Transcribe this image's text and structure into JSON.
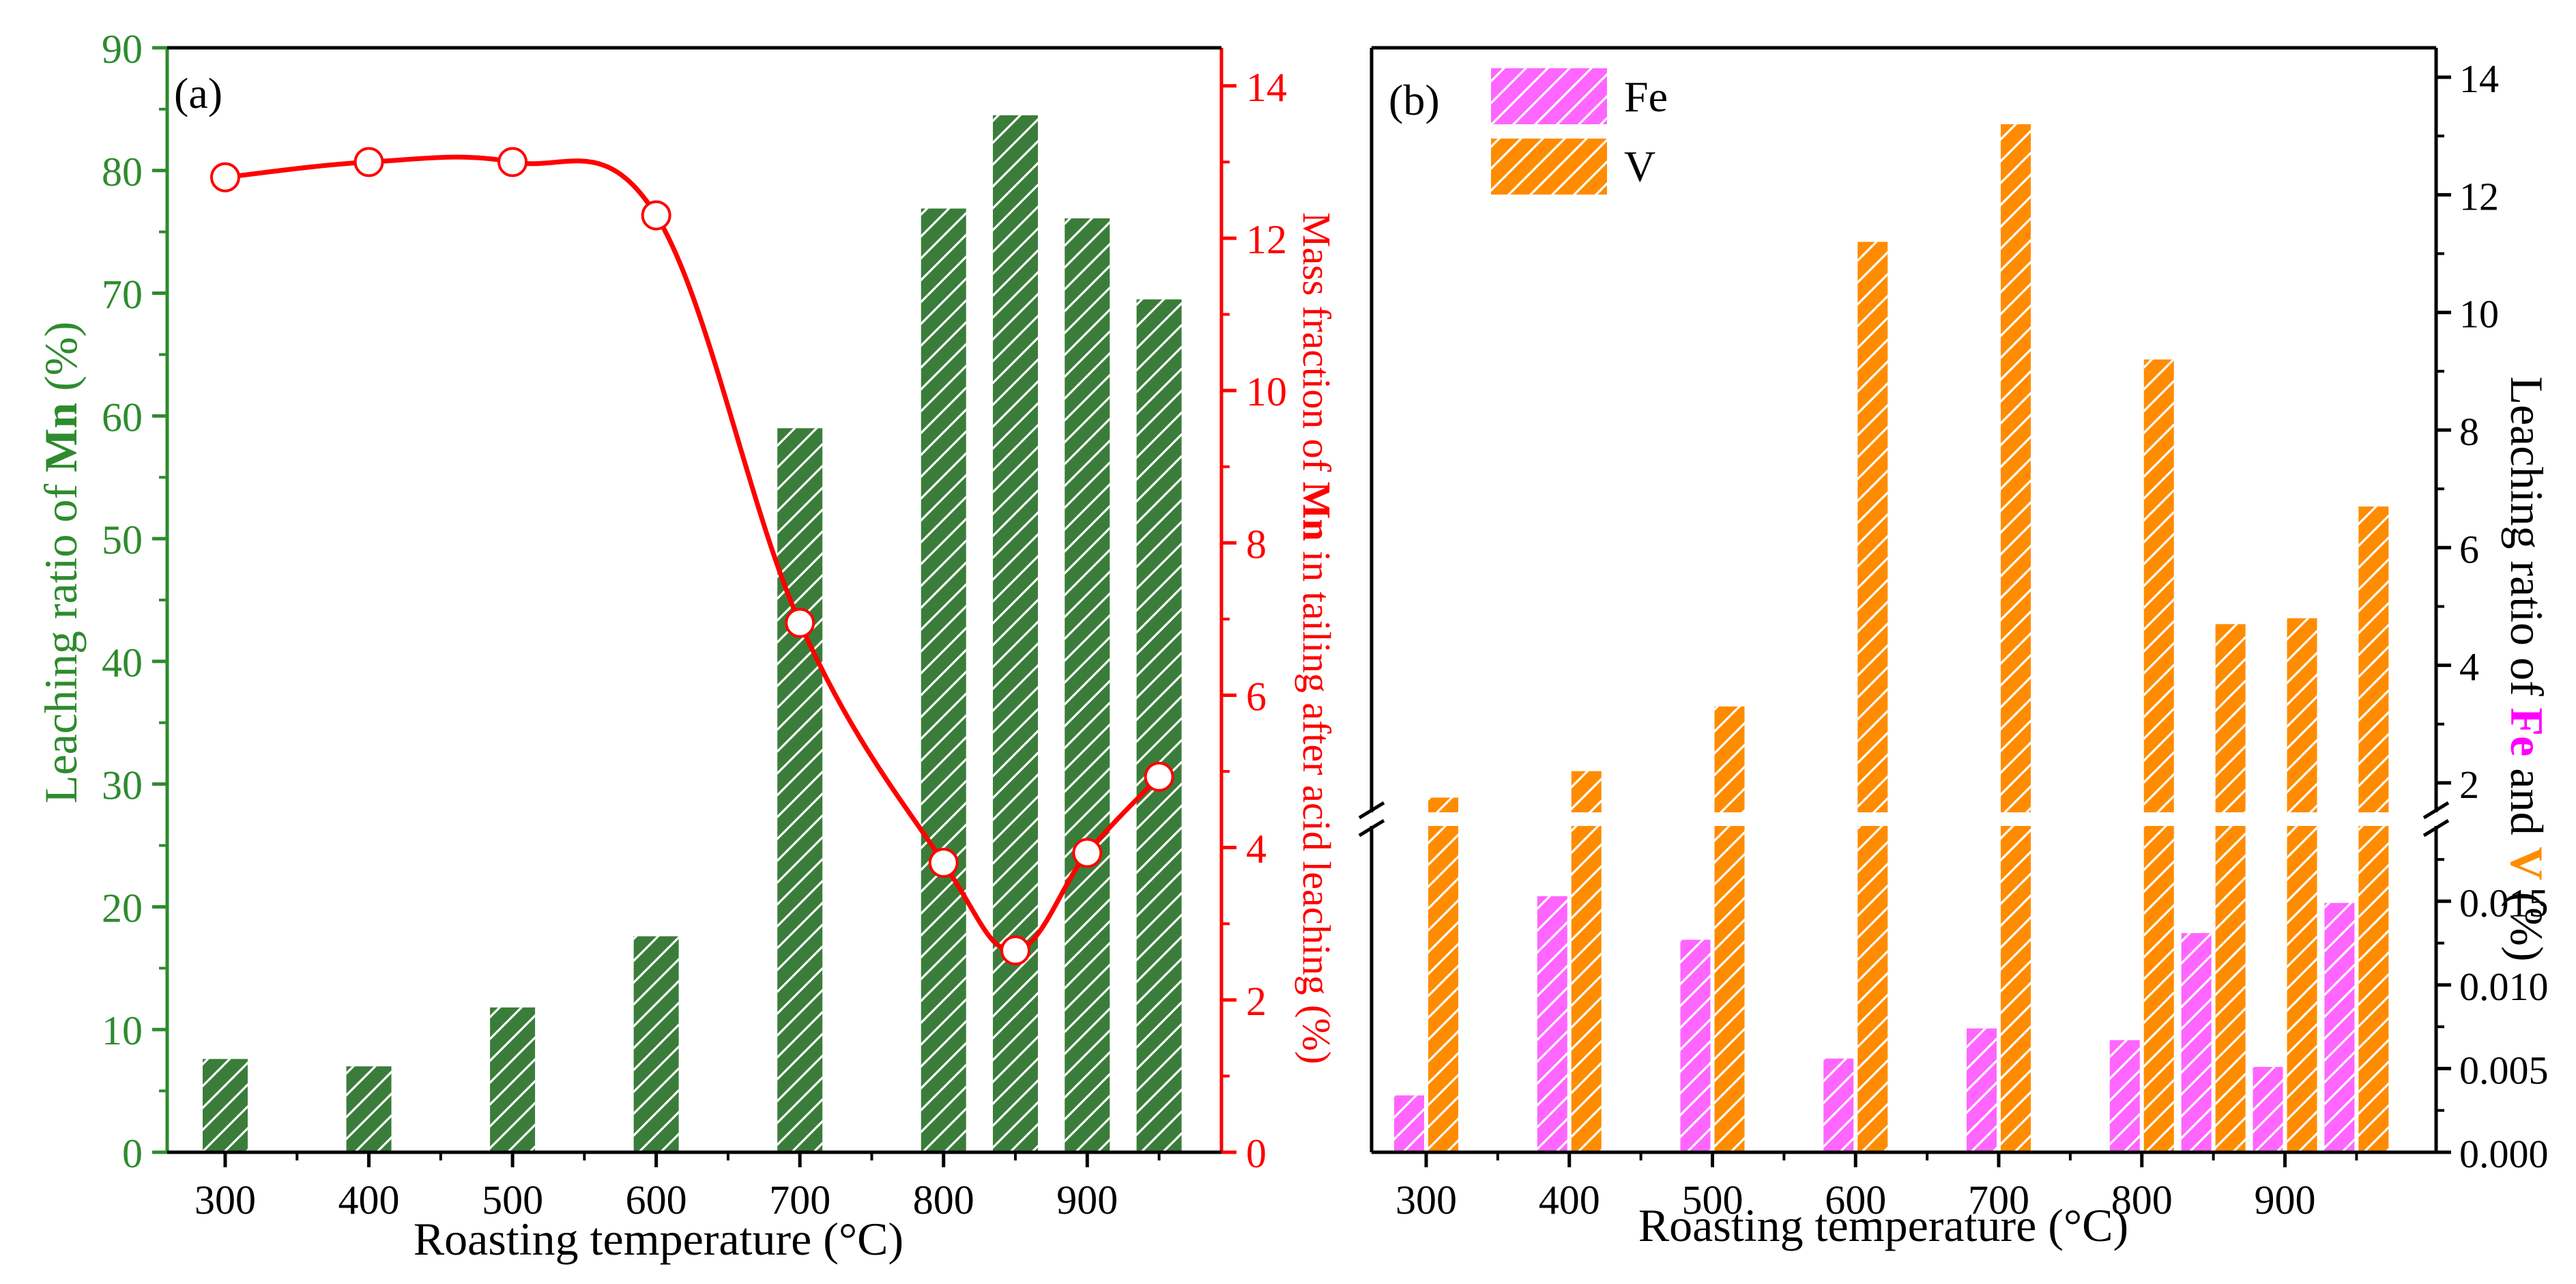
{
  "chart_data": [
    {
      "panel_label": "(a)",
      "type": "bar",
      "x": [
        300,
        400,
        500,
        600,
        700,
        800,
        850,
        900,
        950
      ],
      "series": [
        {
          "name": "Leaching ratio of Mn",
          "axis": "left",
          "values": [
            7.6,
            7.0,
            11.8,
            17.6,
            59.0,
            76.9,
            84.5,
            76.1,
            69.5
          ]
        },
        {
          "name": "Mass fraction of Mn in tailing after acid leaching",
          "type": "scatter+smooth-line",
          "axis": "right",
          "values": [
            12.8,
            13.0,
            13.0,
            12.3,
            6.95,
            3.8,
            2.65,
            3.93,
            4.93
          ]
        }
      ],
      "xlabel": "Roasting temperature (°C)",
      "x_ticks": [
        "300",
        "400",
        "500",
        "600",
        "700",
        "800",
        "900"
      ],
      "ylabel_left": {
        "prefix": "Leaching ratio of ",
        "bold": "Mn",
        "suffix": " (%)"
      },
      "ylim_left": [
        0,
        90
      ],
      "y_ticks_left": [
        "0",
        "10",
        "20",
        "30",
        "40",
        "50",
        "60",
        "70",
        "80",
        "90"
      ],
      "ylabel_right": {
        "prefix": "Mass fraction of ",
        "bold": "Mn",
        "suffix": " in tailing after acid leaching (%)"
      },
      "ylim_right": [
        0,
        14.5
      ],
      "y_ticks_right": [
        "0",
        "2",
        "4",
        "6",
        "8",
        "10",
        "12",
        "14"
      ],
      "grid": false
    },
    {
      "panel_label": "(b)",
      "type": "bar",
      "x": [
        300,
        400,
        500,
        600,
        700,
        800,
        850,
        900,
        950
      ],
      "series": [
        {
          "name": "Fe",
          "color": "#ff66ff",
          "values": [
            0.0034,
            0.0153,
            0.0127,
            0.0056,
            0.0074,
            0.0067,
            0.0131,
            0.0051,
            0.0149
          ]
        },
        {
          "name": "V",
          "color": "#ff8c00",
          "values": [
            1.75,
            2.2,
            3.3,
            11.2,
            13.2,
            9.2,
            4.7,
            4.8,
            6.7
          ]
        }
      ],
      "xlabel": "Roasting temperature (°C)",
      "x_ticks": [
        "300",
        "400",
        "500",
        "600",
        "700",
        "800",
        "900"
      ],
      "legend": [
        "Fe",
        "V"
      ],
      "legend_position": "top-left",
      "ylabel_right": {
        "prefix": "Leaching ratio of ",
        "fe": "Fe",
        "middle": " and ",
        "v": "V",
        "suffix": " (%)"
      },
      "broken_axis": {
        "lower": {
          "ylim": [
            0,
            0.0195
          ],
          "ticks": [
            "0.000",
            "0.005",
            "0.010",
            "0.015"
          ],
          "tick_values": [
            0,
            0.005,
            0.01,
            0.015
          ]
        },
        "upper": {
          "ylim": [
            1.5,
            14.5
          ],
          "ticks": [
            "2",
            "4",
            "6",
            "8",
            "10",
            "12",
            "14"
          ],
          "tick_values": [
            2,
            4,
            6,
            8,
            10,
            12,
            14
          ]
        }
      },
      "grid": false
    }
  ],
  "colors": {
    "mn_bar": "#3a7d3a",
    "mn_axis": "#2e8b2e",
    "curve": "#ff0000",
    "fe": "#ff66ff",
    "v": "#ff8c00",
    "axis": "#000000"
  }
}
